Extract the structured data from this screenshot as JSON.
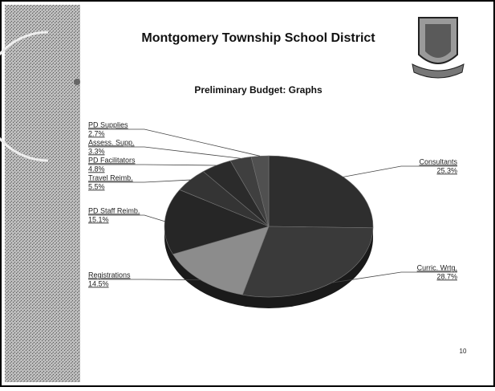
{
  "chart_data": {
    "type": "pie",
    "title": "Montgomery Township School District",
    "subtitle": "Preliminary Budget: Graphs",
    "categories": [
      "Consultants",
      "Curric. Wrtg.",
      "Registrations",
      "PD Staff Reimb.",
      "Travel Reimb.",
      "PD Facilitators",
      "Assess. Supp.",
      "PD Supplies"
    ],
    "values": [
      25.3,
      28.7,
      14.5,
      15.1,
      5.5,
      4.8,
      3.3,
      2.7
    ],
    "value_labels": [
      "25.3%",
      "28.7%",
      "14.5%",
      "15.1%",
      "5.5%",
      "4.8%",
      "3.3%",
      "2.7%"
    ],
    "colors": [
      "#2e2e2e",
      "#3a3a3a",
      "#8c8c8c",
      "#262626",
      "#343434",
      "#2b2b2b",
      "#3f3f3f",
      "#505050"
    ],
    "page_number": "10"
  }
}
